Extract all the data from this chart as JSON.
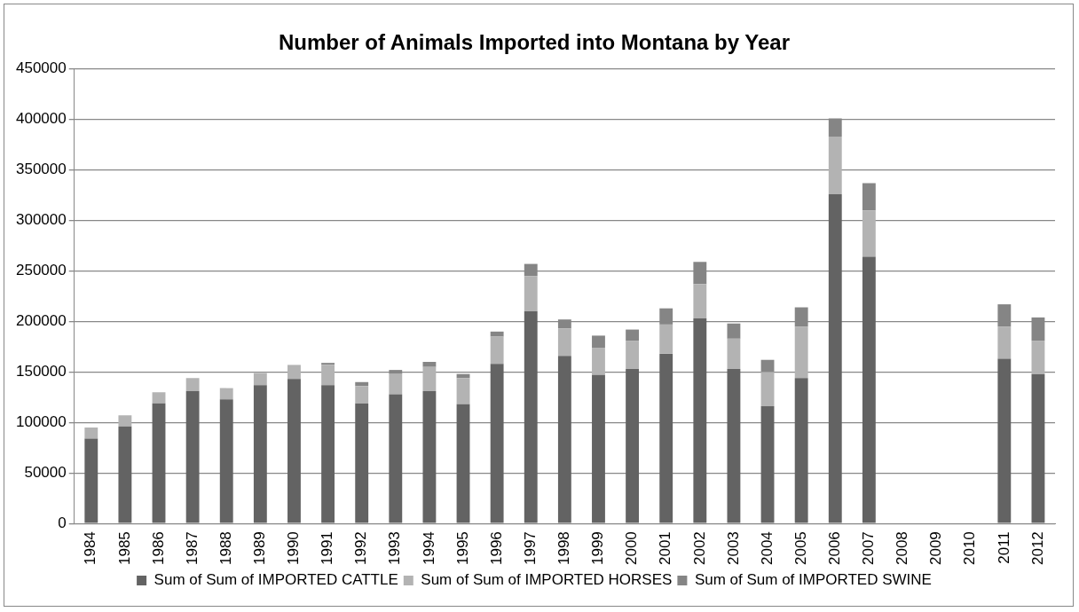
{
  "chart_data": {
    "type": "bar",
    "title": "Number of Animals Imported into Montana by Year",
    "stacked": true,
    "grid": "y",
    "legend": "bottom",
    "categories": [
      "1984",
      "1985",
      "1986",
      "1987",
      "1988",
      "1989",
      "1990",
      "1991",
      "1992",
      "1993",
      "1994",
      "1995",
      "1996",
      "1997",
      "1998",
      "1999",
      "2000",
      "2001",
      "2002",
      "2003",
      "2004",
      "2005",
      "2006",
      "2007",
      "2008",
      "2009",
      "2010",
      "2011",
      "2012"
    ],
    "ylim": [
      0,
      450000
    ],
    "yticks": [
      0,
      50000,
      100000,
      150000,
      200000,
      250000,
      300000,
      350000,
      400000,
      450000
    ],
    "series": [
      {
        "name": "Sum of Sum of IMPORTED CATTLE",
        "color": "#636363",
        "values": [
          84000,
          96000,
          119000,
          131000,
          123000,
          137000,
          143000,
          137000,
          119000,
          128000,
          131000,
          118000,
          158000,
          210000,
          166000,
          147000,
          153000,
          168000,
          203000,
          153000,
          116000,
          144000,
          326000,
          264000,
          null,
          null,
          null,
          163000,
          148000
        ]
      },
      {
        "name": "Sum of Sum of IMPORTED HORSES",
        "color": "#b3b3b3",
        "values": [
          11000,
          11000,
          11000,
          13000,
          11000,
          12000,
          14000,
          20000,
          17000,
          20000,
          24000,
          26000,
          27000,
          35000,
          27000,
          27000,
          28000,
          29000,
          34000,
          30000,
          34000,
          51000,
          57000,
          46000,
          null,
          null,
          null,
          32000,
          33000
        ]
      },
      {
        "name": "Sum of Sum of IMPORTED SWINE",
        "color": "#858585",
        "values": [
          null,
          null,
          null,
          null,
          null,
          null,
          null,
          2000,
          4000,
          4000,
          5000,
          4000,
          5000,
          12000,
          9000,
          12000,
          11000,
          16000,
          22000,
          15000,
          12000,
          19000,
          18000,
          27000,
          null,
          null,
          null,
          22000,
          23000
        ]
      }
    ]
  }
}
